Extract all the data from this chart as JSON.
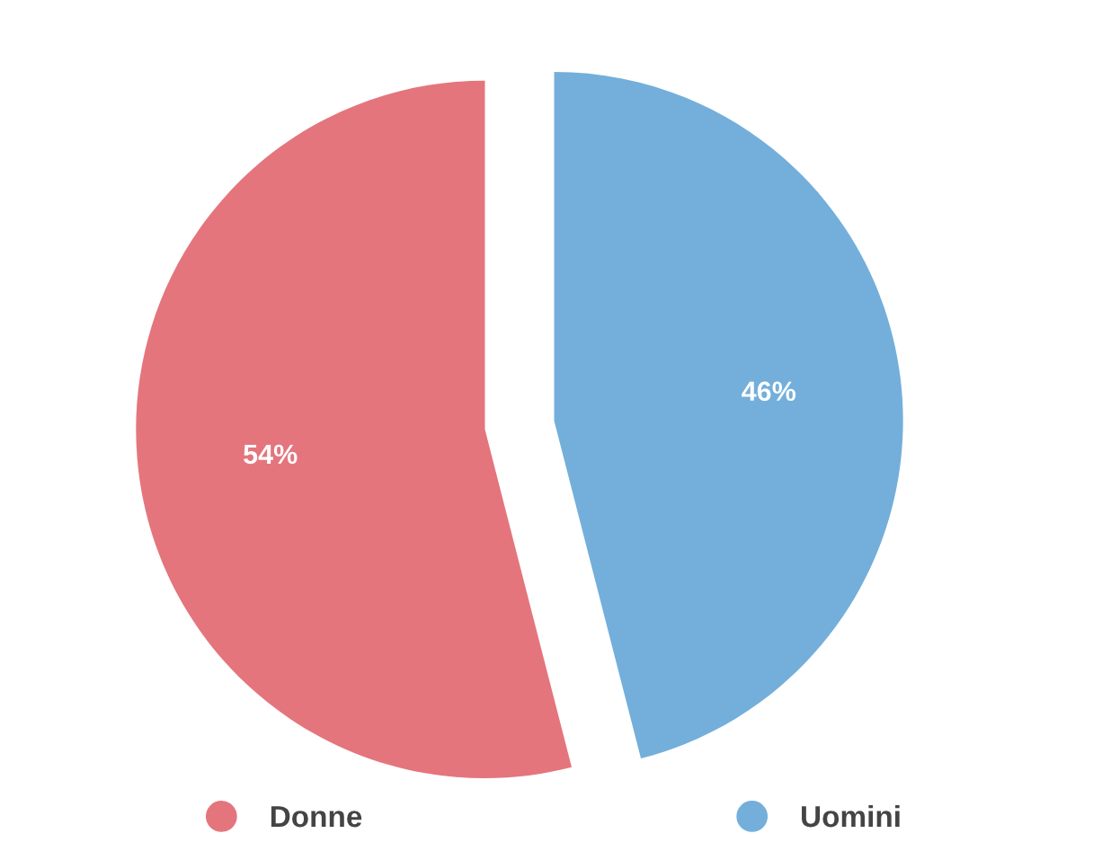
{
  "chart_data": {
    "type": "pie",
    "categories": [
      "Donne",
      "Uomini"
    ],
    "values": [
      54,
      46
    ],
    "colors": [
      "#e4757d",
      "#73afda"
    ],
    "value_labels": [
      "54%",
      "46%"
    ],
    "legend": "bottom",
    "marker": "circle"
  }
}
